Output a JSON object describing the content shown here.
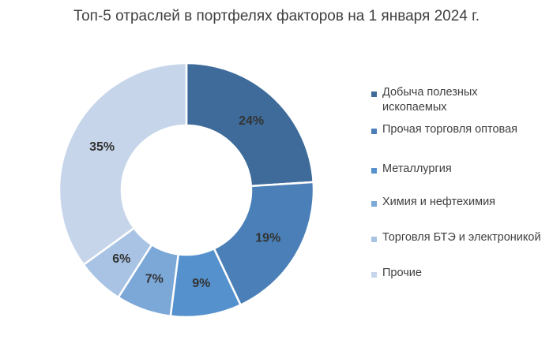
{
  "chart_data": {
    "type": "pie",
    "variant": "donut",
    "title": "Топ-5 отраслей в портфелях факторов на 1 января 2024 г.",
    "categories": [
      "Добыча полезных ископаемых",
      "Прочая торговля оптовая",
      "Металлургия",
      "Химия и нефтехимия",
      "Торговля БТЭ и электроникой",
      "Прочие"
    ],
    "values": [
      24,
      19,
      9,
      7,
      6,
      35
    ],
    "labels": [
      "24%",
      "19%",
      "9%",
      "7%",
      "6%",
      "35%"
    ],
    "colors": [
      "#3e6b99",
      "#4a80b7",
      "#5592cd",
      "#7ca8d8",
      "#a8c3e4",
      "#c6d5ea"
    ],
    "legend_position": "right",
    "grid": false
  }
}
